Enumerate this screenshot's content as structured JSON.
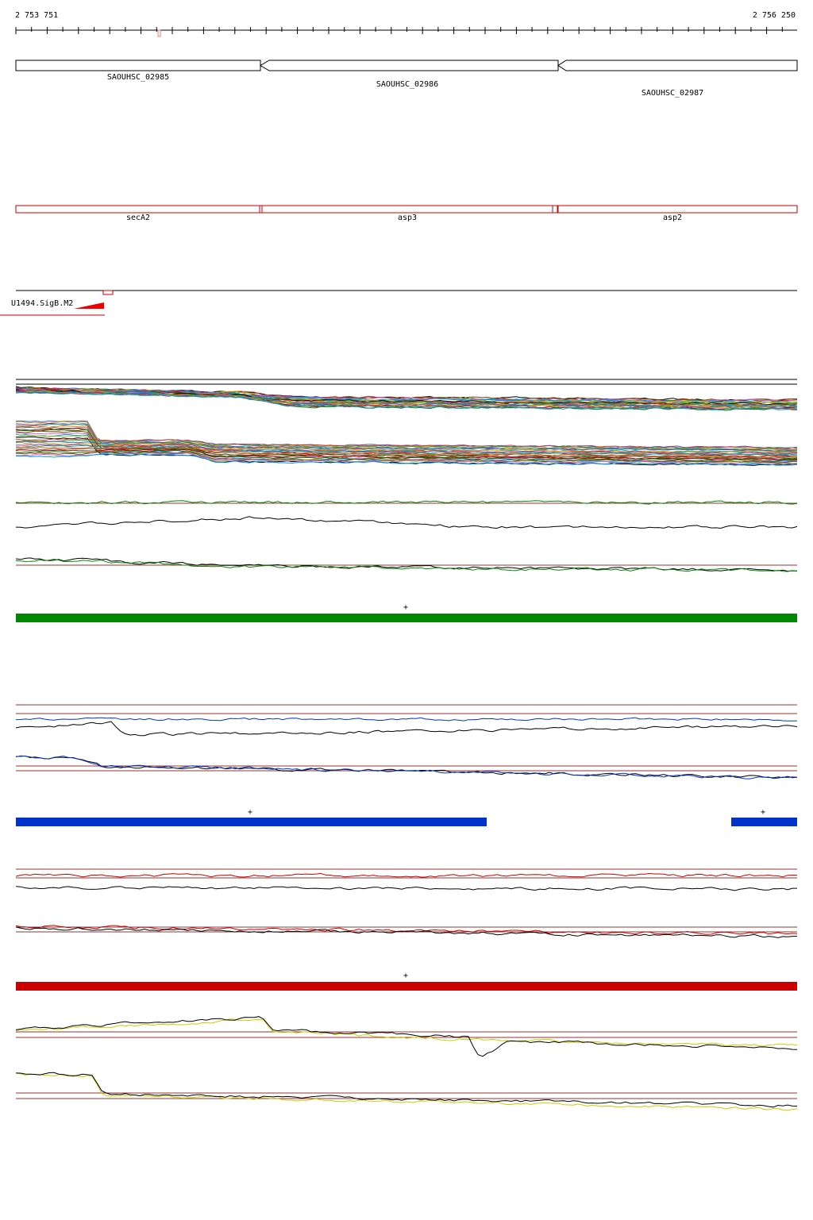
{
  "coordinates": {
    "start_label": "2 753 751",
    "end_label": "2 756 250"
  },
  "genes": [
    {
      "name": "SAOUHSC_02985",
      "strand": "-"
    },
    {
      "name": "SAOUHSC_02986",
      "strand": "-"
    },
    {
      "name": "SAOUHSC_02987",
      "strand": "-"
    }
  ],
  "gene_names": [
    "secA2",
    "asp3",
    "asp2"
  ],
  "regulatory_feature": {
    "label": "U1494.SigB.M2"
  },
  "segment_markers": {
    "green_strand": "+",
    "blue_strand_left": "+",
    "blue_strand_right": "+",
    "red_strand": "+"
  },
  "colors": {
    "gene_outline": "#000000",
    "annotation_outline": "#cc0000",
    "green_track": "#008800",
    "blue_track": "#0033cc",
    "red_track": "#cc0000",
    "yellow_track": "#cccc00",
    "baseline": "#993333"
  }
}
